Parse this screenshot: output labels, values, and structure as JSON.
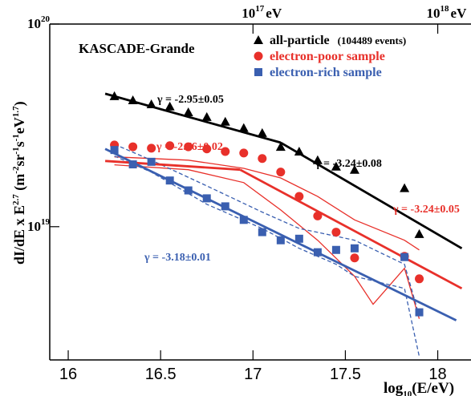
{
  "chart_data": {
    "type": "line",
    "title": "KASCADE-Grande",
    "x_label": [
      {
        "text": "log"
      },
      {
        "text": "10",
        "sub": true
      },
      {
        "text": "(E/eV)"
      }
    ],
    "y_label": [
      {
        "text": "dI/dE x  E"
      },
      {
        "text": "2.7",
        "sup": true
      },
      {
        "text": " (m"
      },
      {
        "text": "-2",
        "sup": true
      },
      {
        "text": "sr"
      },
      {
        "text": "-1",
        "sup": true
      },
      {
        "text": "s"
      },
      {
        "text": "-1",
        "sup": true
      },
      {
        "text": "eV"
      },
      {
        "text": "1.7",
        "sup": true
      },
      {
        "text": ")"
      }
    ],
    "xlim": [
      15.9,
      18.18
    ],
    "xticks": [
      16,
      16.5,
      17,
      17.5,
      18
    ],
    "top_xticks": [
      {
        "value": 17,
        "base": "10",
        "exponent": "17",
        "unit": "eV"
      },
      {
        "value": 18,
        "base": "10",
        "exponent": "18",
        "unit": "eV"
      }
    ],
    "ylim": [
      2.2e+18,
      1e+20
    ],
    "y_log": true,
    "yticks": [
      {
        "value": 1e+19,
        "base": "10",
        "exponent": "19"
      },
      {
        "value": 1e+20,
        "base": "10",
        "exponent": "20"
      }
    ],
    "series": [
      {
        "name": "all-particle",
        "note": "(104489 events)",
        "color": "#000000",
        "marker": "triangle",
        "x": [
          16.25,
          16.35,
          16.45,
          16.55,
          16.65,
          16.75,
          16.85,
          16.95,
          17.05,
          17.15,
          17.25,
          17.35,
          17.45,
          17.55,
          17.82,
          17.9
        ],
        "values": [
          4.41e+19,
          4.21e+19,
          4.02e+19,
          3.92e+19,
          3.67e+19,
          3.48e+19,
          3.3e+19,
          3.07e+19,
          2.9e+19,
          2.48e+19,
          2.35e+19,
          2.13e+19,
          1.98e+19,
          1.91e+19,
          1.55e+19,
          9.2e+18
        ]
      },
      {
        "name": "electron-poor sample",
        "color": "#e8302a",
        "marker": "circle",
        "x": [
          16.25,
          16.35,
          16.45,
          16.55,
          16.65,
          16.75,
          16.85,
          16.95,
          17.05,
          17.15,
          17.25,
          17.35,
          17.45,
          17.55,
          17.82,
          17.9
        ],
        "values": [
          2.53e+19,
          2.48e+19,
          2.44e+19,
          2.51e+19,
          2.48e+19,
          2.42e+19,
          2.35e+19,
          2.31e+19,
          2.17e+19,
          1.86e+19,
          1.41e+19,
          1.13e+19,
          9.4e+18,
          7.01e+18,
          7.14e+18,
          5.53e+18
        ]
      },
      {
        "name": "electron-rich sample",
        "color": "#3a5fb0",
        "marker": "square",
        "x": [
          16.25,
          16.35,
          16.45,
          16.55,
          16.65,
          16.75,
          16.85,
          16.95,
          17.05,
          17.15,
          17.25,
          17.35,
          17.45,
          17.55,
          17.82,
          17.9
        ],
        "values": [
          2.39e+19,
          2.03e+19,
          2.09e+19,
          1.69e+19,
          1.51e+19,
          1.38e+19,
          1.26e+19,
          1.08e+19,
          9.4e+18,
          8.57e+18,
          8.72e+18,
          7.48e+18,
          7.68e+18,
          7.82e+18,
          7.08e+18,
          3.78e+18
        ]
      }
    ],
    "fits": [
      {
        "label": "γ = -2.95±0.05",
        "color": "#000000",
        "x": [
          16.2,
          17.15
        ],
        "values": [
          4.53e+19,
          2.6e+19
        ]
      },
      {
        "label": "γ = -3.24±0.08",
        "color": "#000000",
        "x": [
          17.15,
          18.13
        ],
        "values": [
          2.6e+19,
          7.82e+18
        ]
      },
      {
        "label": "γ = -2.76±0.02",
        "color": "#e8302a",
        "x": [
          16.2,
          16.93
        ],
        "values": [
          2.11e+19,
          1.91e+19
        ]
      },
      {
        "label": "γ = -3.24±0.05",
        "color": "#e8302a",
        "x": [
          16.93,
          18.13
        ],
        "values": [
          1.91e+19,
          4.96e+18
        ]
      },
      {
        "label": "γ = -3.18±0.01",
        "color": "#3a5fb0",
        "x": [
          16.2,
          18.1
        ],
        "values": [
          2.42e+19,
          3.45e+18
        ]
      }
    ],
    "bands": [
      {
        "color": "#e8302a",
        "dashed": false,
        "x": [
          16.25,
          16.65,
          16.95,
          17.15,
          17.35,
          17.55,
          17.82,
          17.9
        ],
        "values": [
          2.21e+19,
          2.13e+19,
          1.94e+19,
          1.74e+19,
          1.41e+19,
          1.08e+19,
          8.57e+18,
          7.68e+18
        ]
      },
      {
        "color": "#e8302a",
        "dashed": false,
        "x": [
          16.25,
          16.65,
          16.95,
          17.15,
          17.35,
          17.55,
          17.65,
          17.82,
          17.9
        ],
        "values": [
          2.02e+19,
          1.91e+19,
          1.65e+19,
          1.21e+19,
          8.57e+18,
          5.69e+18,
          4.14e+18,
          6.23e+18,
          3.51e+18
        ]
      },
      {
        "color": "#3a5fb0",
        "dashed": true,
        "x": [
          16.25,
          16.45,
          16.75,
          17.05,
          17.25,
          17.45,
          17.55,
          17.82,
          17.9
        ],
        "values": [
          2.55e+19,
          2.13e+19,
          1.59e+19,
          1.18e+19,
          9.8e+18,
          8.97e+18,
          8.57e+18,
          6.52e+18,
          3.61e+18
        ]
      },
      {
        "color": "#3a5fb0",
        "dashed": true,
        "x": [
          16.25,
          16.45,
          16.75,
          17.05,
          17.25,
          17.45,
          17.55,
          17.82,
          17.9
        ],
        "values": [
          2.23e+19,
          1.86e+19,
          1.29e+19,
          9.8e+18,
          7.82e+18,
          6.52e+18,
          5.69e+18,
          4.96e+18,
          2.29e+18
        ]
      }
    ]
  }
}
